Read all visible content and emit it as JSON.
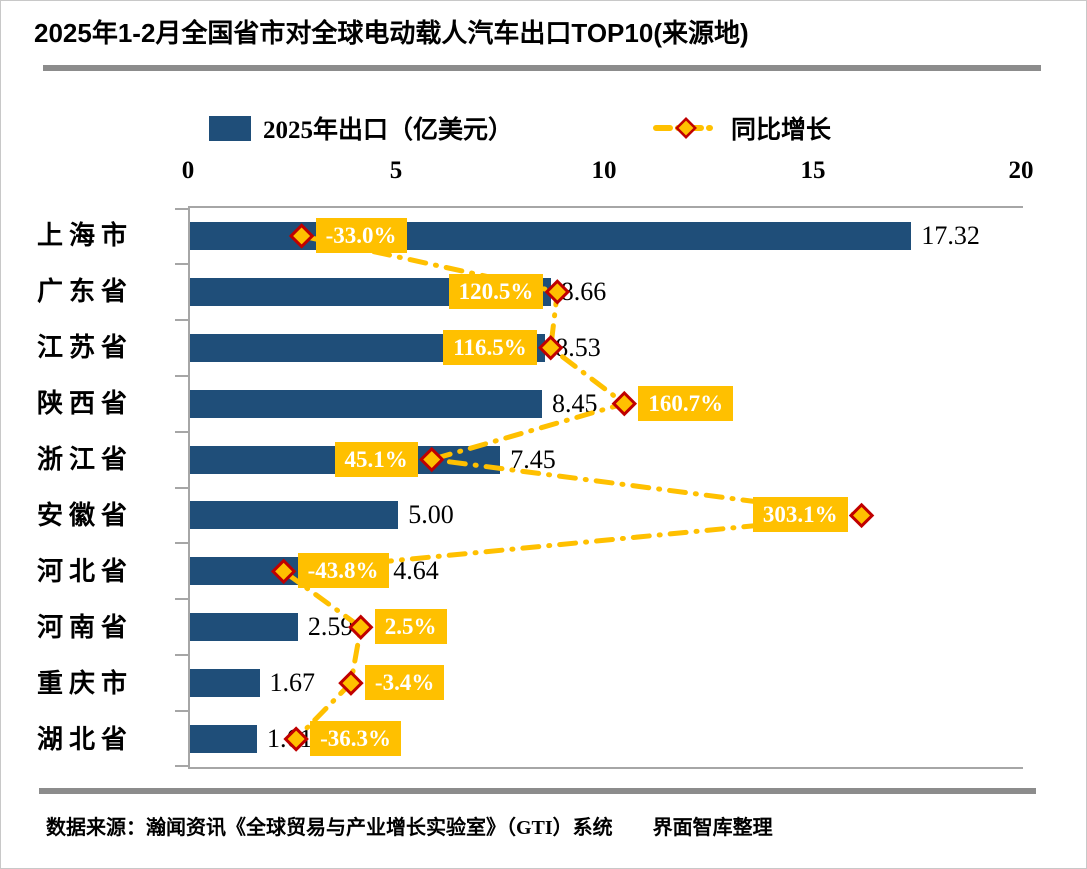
{
  "title": "2025年1-2月全国省市对全球电动载人汽车出口TOP10(来源地)",
  "legend": {
    "bar_label": "2025年出口（亿美元）",
    "line_label": "同比增长"
  },
  "source_note": "数据来源：瀚闻资讯《全球贸易与产业增长实验室》（GTI）系统　　界面智库整理",
  "colors": {
    "bar": "#1F4E79",
    "growth_line": "#FFC000",
    "marker_fill": "#FFC000",
    "marker_border": "#C00000",
    "pct_label_bg": "#FFC000",
    "pct_label_text": "#FFFFFF",
    "axis": "#A6A6A6",
    "divider": "#8C8C8C"
  },
  "chart_data": {
    "type": "bar",
    "orientation": "horizontal",
    "title": "2025年1-2月全国省市对全球电动载人汽车出口TOP10(来源地)",
    "categories": [
      "上海市",
      "广东省",
      "江苏省",
      "陕西省",
      "浙江省",
      "安徽省",
      "河北省",
      "河南省",
      "重庆市",
      "湖北省"
    ],
    "series": [
      {
        "name": "2025年出口（亿美元）",
        "type": "bar",
        "values": [
          17.32,
          8.66,
          8.53,
          8.45,
          7.45,
          5.0,
          4.64,
          2.59,
          1.67,
          1.61
        ],
        "value_labels": [
          "17.32",
          "8.66",
          "8.53",
          "8.45",
          "7.45",
          "5.00",
          "4.64",
          "2.59",
          "1.67",
          "1.61"
        ]
      },
      {
        "name": "同比增长",
        "type": "line",
        "values_pct": [
          -33.0,
          120.5,
          116.5,
          160.7,
          45.1,
          303.1,
          -43.8,
          2.5,
          -3.4,
          -36.3
        ],
        "labels": [
          "-33.0%",
          "120.5%",
          "116.5%",
          "160.7%",
          "45.1%",
          "303.1%",
          "-43.8%",
          "2.5%",
          "-3.4%",
          "-36.3%"
        ],
        "label_side": [
          "right",
          "left",
          "left",
          "right",
          "left",
          "left",
          "right",
          "right",
          "right",
          "right"
        ],
        "line_style": "dash-dot",
        "marker": "diamond"
      }
    ],
    "x_axis": {
      "position": "top",
      "min": 0,
      "max": 20,
      "ticks": [
        "0",
        "5",
        "10",
        "15",
        "20"
      ]
    },
    "secondary_axis": {
      "min_pct": -100,
      "max_pct": 400,
      "visible": false
    },
    "grid": false,
    "legend_position": "top"
  }
}
